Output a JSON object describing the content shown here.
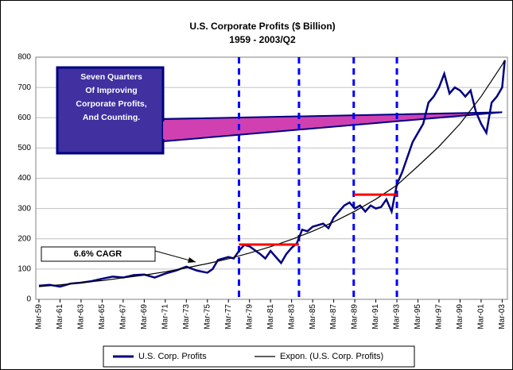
{
  "chart_data": {
    "type": "line",
    "title": "U.S. Corporate Profits ($ Billion)",
    "subtitle": "1959 - 2003/Q2",
    "xlim": [
      1958.7,
      2003.5
    ],
    "xticks": [
      {
        "value": 1959,
        "label": "Mar-59"
      },
      {
        "value": 1961,
        "label": "Mar-61"
      },
      {
        "value": 1963,
        "label": "Mar-63"
      },
      {
        "value": 1965,
        "label": "Mar-65"
      },
      {
        "value": 1967,
        "label": "Mar-67"
      },
      {
        "value": 1969,
        "label": "Mar-69"
      },
      {
        "value": 1971,
        "label": "Mar-71"
      },
      {
        "value": 1973,
        "label": "Mar-73"
      },
      {
        "value": 1975,
        "label": "Mar-75"
      },
      {
        "value": 1977,
        "label": "Mar-77"
      },
      {
        "value": 1979,
        "label": "Mar-79"
      },
      {
        "value": 1981,
        "label": "Mar-81"
      },
      {
        "value": 1983,
        "label": "Mar-83"
      },
      {
        "value": 1985,
        "label": "Mar-85"
      },
      {
        "value": 1987,
        "label": "Mar-87"
      },
      {
        "value": 1989,
        "label": "Mar-89"
      },
      {
        "value": 1991,
        "label": "Mar-91"
      },
      {
        "value": 1993,
        "label": "Mar-93"
      },
      {
        "value": 1995,
        "label": "Mar-95"
      },
      {
        "value": 1997,
        "label": "Mar-97"
      },
      {
        "value": 1999,
        "label": "Mar-99"
      },
      {
        "value": 2001,
        "label": "Mar-01"
      },
      {
        "value": 2003,
        "label": "Mar-03"
      }
    ],
    "ylim": [
      0,
      800
    ],
    "yticks": [
      0,
      100,
      200,
      300,
      400,
      500,
      600,
      700,
      800
    ],
    "grid": true,
    "legend": "bottom",
    "series": [
      {
        "name": "U.S. Corp. Profits",
        "color": "#000080",
        "x": [
          1959,
          1960,
          1961,
          1962,
          1963,
          1964,
          1965,
          1966,
          1967,
          1968,
          1969,
          1970,
          1971,
          1972,
          1973,
          1974,
          1975,
          1975.5,
          1976,
          1977,
          1977.5,
          1978,
          1978.5,
          1979,
          1980,
          1980.5,
          1981,
          1981.5,
          1982,
          1982.5,
          1983,
          1983.5,
          1984,
          1984.5,
          1985,
          1986,
          1986.5,
          1987,
          1988,
          1988.5,
          1989,
          1989.5,
          1990,
          1990.5,
          1991,
          1991.5,
          1992,
          1992.5,
          1993,
          1993.5,
          1994,
          1994.5,
          1995,
          1995.5,
          1996,
          1996.5,
          1997,
          1997.5,
          1998,
          1998.5,
          1999,
          1999.5,
          2000,
          2000.5,
          2001,
          2001.5,
          2002,
          2002.5,
          2003,
          2003.25
        ],
        "values": [
          45,
          48,
          42,
          52,
          55,
          60,
          68,
          75,
          72,
          80,
          82,
          72,
          85,
          95,
          108,
          95,
          88,
          100,
          130,
          140,
          135,
          160,
          180,
          175,
          150,
          135,
          160,
          140,
          120,
          150,
          170,
          185,
          230,
          225,
          240,
          250,
          235,
          270,
          310,
          320,
          300,
          310,
          290,
          310,
          300,
          305,
          330,
          290,
          380,
          420,
          470,
          520,
          550,
          580,
          650,
          670,
          700,
          745,
          680,
          700,
          690,
          670,
          690,
          620,
          580,
          550,
          650,
          670,
          700,
          790
        ]
      },
      {
        "name": "Expon. (U.S. Corp. Profits)",
        "color": "#000000",
        "x": [
          1959,
          1961,
          1963,
          1965,
          1967,
          1969,
          1971,
          1973,
          1975,
          1977,
          1979,
          1981,
          1983,
          1985,
          1987,
          1989,
          1991,
          1993,
          1995,
          1997,
          1999,
          2001,
          2003,
          2003.25
        ],
        "values": [
          42,
          48,
          55,
          62,
          71,
          80,
          91,
          104,
          118,
          134,
          153,
          174,
          198,
          225,
          256,
          291,
          331,
          377,
          440,
          505,
          580,
          670,
          775,
          790
        ]
      }
    ],
    "vlines": [
      1978,
      1983.7,
      1988.9,
      1993
    ],
    "hsegments": [
      {
        "x": [
          1978,
          1983.7
        ],
        "y": 181
      },
      {
        "x": [
          1988.9,
          1993
        ],
        "y": 346
      }
    ],
    "annotations": {
      "callout": [
        "Seven Quarters",
        "Of Improving",
        "Corporate Profits,",
        "And Counting."
      ],
      "cagr": "6.6% CAGR"
    }
  }
}
